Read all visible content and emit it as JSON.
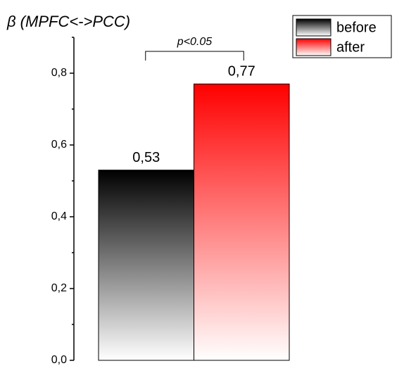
{
  "chart_data": {
    "type": "bar",
    "title": "β (MPFC<->PCC)",
    "categories": [
      null
    ],
    "series": [
      {
        "name": "before",
        "color": "#000000",
        "values": [
          0.53
        ],
        "value_labels": [
          "0,53"
        ]
      },
      {
        "name": "after",
        "color": "#ff0000",
        "values": [
          0.77
        ],
        "value_labels": [
          "0,77"
        ]
      }
    ],
    "ylim": [
      0,
      0.9
    ],
    "yticks": [
      {
        "value": 0,
        "label": "0,0"
      },
      {
        "value": 0.2,
        "label": "0,2"
      },
      {
        "value": 0.4,
        "label": "0,4"
      },
      {
        "value": 0.6,
        "label": "0,6"
      },
      {
        "value": 0.8,
        "label": "0,8"
      }
    ],
    "yminorticks": [
      0.1,
      0.3,
      0.5,
      0.7,
      0.9
    ],
    "annotation": "p<0.05",
    "legend": "top-right"
  }
}
